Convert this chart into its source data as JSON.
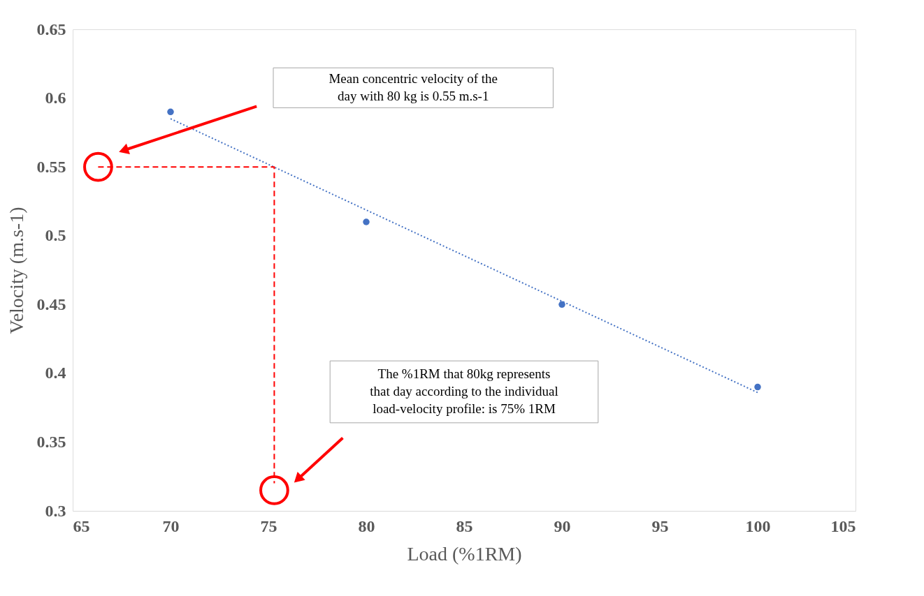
{
  "chart_data": {
    "type": "scatter",
    "xlabel": "Load (%1RM)",
    "ylabel": "Velocity (m.s-1)",
    "xlim": [
      65,
      105
    ],
    "ylim": [
      0.3,
      0.65
    ],
    "xticks": [
      65,
      70,
      75,
      80,
      85,
      90,
      95,
      100,
      105
    ],
    "yticks": [
      0.3,
      0.35,
      0.4,
      0.45,
      0.5,
      0.55,
      0.6,
      0.65
    ],
    "grid": false,
    "annotations": [
      "Mean concentric velocity of the\nday with 80 kg is 0.55 m.s-1",
      "The %1RM that 80kg represents\nthat day according to the individual\nload-velocity profile: is 75% 1RM"
    ],
    "series": [
      {
        "color": "#4472c4",
        "marker": "circle",
        "x": [
          70,
          80,
          90,
          100
        ],
        "values": [
          0.59,
          0.51,
          0.45,
          0.39
        ]
      },
      {
        "type": "line",
        "color": "#4472c4",
        "line_style": "dotted",
        "x": [
          70,
          100
        ],
        "values": [
          0.585,
          0.386
        ]
      },
      {
        "type": "line",
        "color": "#ff0000",
        "line_style": "dashed",
        "x": [
          66.3,
          75.3,
          75.3
        ],
        "values": [
          0.55,
          0.55,
          0.32
        ]
      },
      {
        "type": "scatter",
        "color": "#ff0000",
        "marker": "circle",
        "x": [
          66.3,
          75.3
        ],
        "values": [
          0.55,
          0.315
        ]
      }
    ]
  }
}
